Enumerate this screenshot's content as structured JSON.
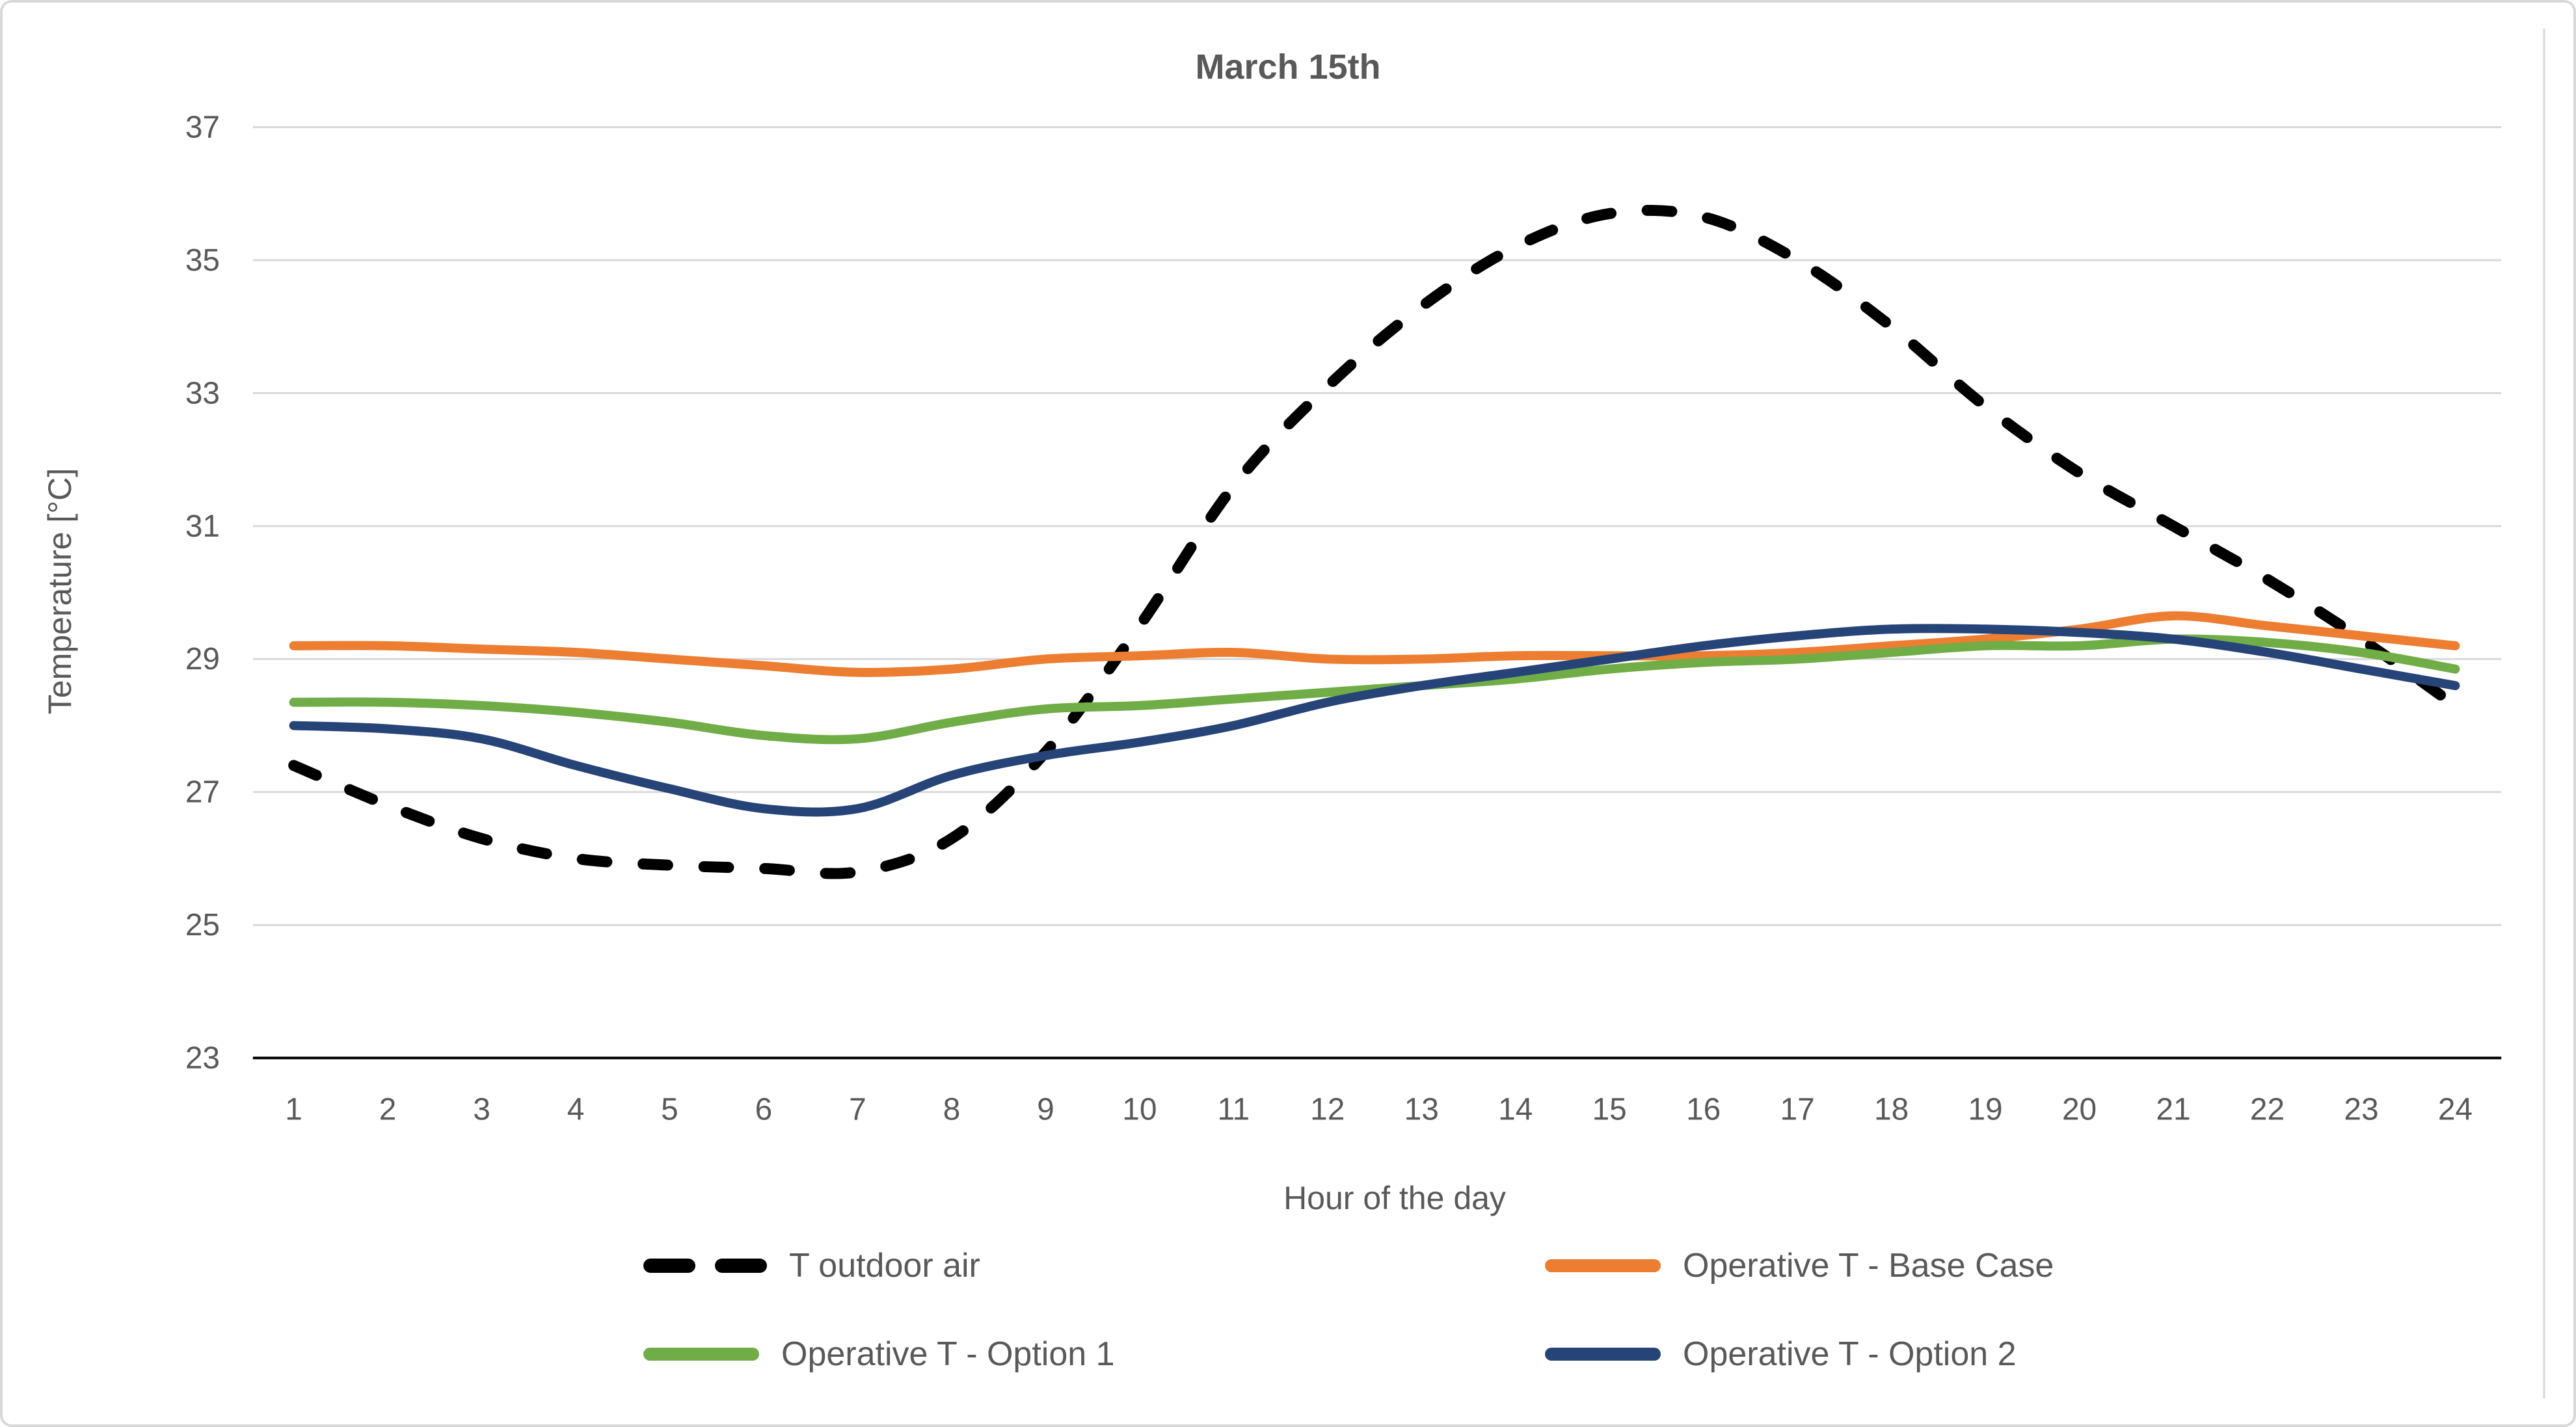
{
  "chart_data": {
    "type": "line",
    "title": "March 15th",
    "xlabel": "Hour of the day",
    "ylabel": "Temperature [°C]",
    "x": [
      1,
      2,
      3,
      4,
      5,
      6,
      7,
      8,
      9,
      10,
      11,
      12,
      13,
      14,
      15,
      16,
      17,
      18,
      19,
      20,
      21,
      22,
      23,
      24
    ],
    "xtick_labels": [
      "1",
      "2",
      "3",
      "4",
      "5",
      "6",
      "7",
      "8",
      "9",
      "10",
      "11",
      "12",
      "13",
      "14",
      "15",
      "16",
      "17",
      "18",
      "19",
      "20",
      "21",
      "22",
      "23",
      "24"
    ],
    "yticks": [
      37,
      35,
      33,
      31,
      29,
      27,
      25,
      23
    ],
    "ylim": [
      23,
      37
    ],
    "grid": "horizontal",
    "smoothed_lines": true,
    "legend_position": "bottom, two columns, two rows",
    "series": [
      {
        "name": "T outdoor air",
        "color": "#000000",
        "style": "dashed",
        "values": [
          27.4,
          26.8,
          26.3,
          26.0,
          25.9,
          25.85,
          25.8,
          26.3,
          27.6,
          29.5,
          31.6,
          33.1,
          34.3,
          35.2,
          35.7,
          35.65,
          35.0,
          34.0,
          32.8,
          31.8,
          31.0,
          30.2,
          29.3,
          28.3
        ]
      },
      {
        "name": "Operative T - Base Case",
        "color": "#ED7D31",
        "style": "solid",
        "values": [
          29.2,
          29.2,
          29.15,
          29.1,
          29.0,
          28.9,
          28.8,
          28.85,
          29.0,
          29.05,
          29.1,
          29.0,
          29.0,
          29.05,
          29.05,
          29.05,
          29.1,
          29.2,
          29.3,
          29.45,
          29.65,
          29.5,
          29.35,
          29.2
        ]
      },
      {
        "name": "Operative T - Option 1",
        "color": "#70AD47",
        "style": "solid",
        "values": [
          28.35,
          28.35,
          28.3,
          28.2,
          28.05,
          27.85,
          27.8,
          28.05,
          28.25,
          28.3,
          28.4,
          28.5,
          28.6,
          28.7,
          28.85,
          28.95,
          29.0,
          29.1,
          29.2,
          29.2,
          29.3,
          29.25,
          29.1,
          28.85
        ]
      },
      {
        "name": "Operative T - Option 2",
        "color": "#264478",
        "style": "solid",
        "values": [
          28.0,
          27.95,
          27.8,
          27.4,
          27.05,
          26.75,
          26.75,
          27.25,
          27.55,
          27.75,
          28.0,
          28.35,
          28.6,
          28.8,
          29.0,
          29.2,
          29.35,
          29.45,
          29.45,
          29.4,
          29.3,
          29.1,
          28.85,
          28.6
        ]
      }
    ],
    "colors": {
      "gridline": "#d9d9d9",
      "axis_line": "#000000",
      "tick_text": "#595959",
      "title_text": "#595959",
      "chart_border": "#d9d9d9",
      "background": "#ffffff"
    }
  }
}
